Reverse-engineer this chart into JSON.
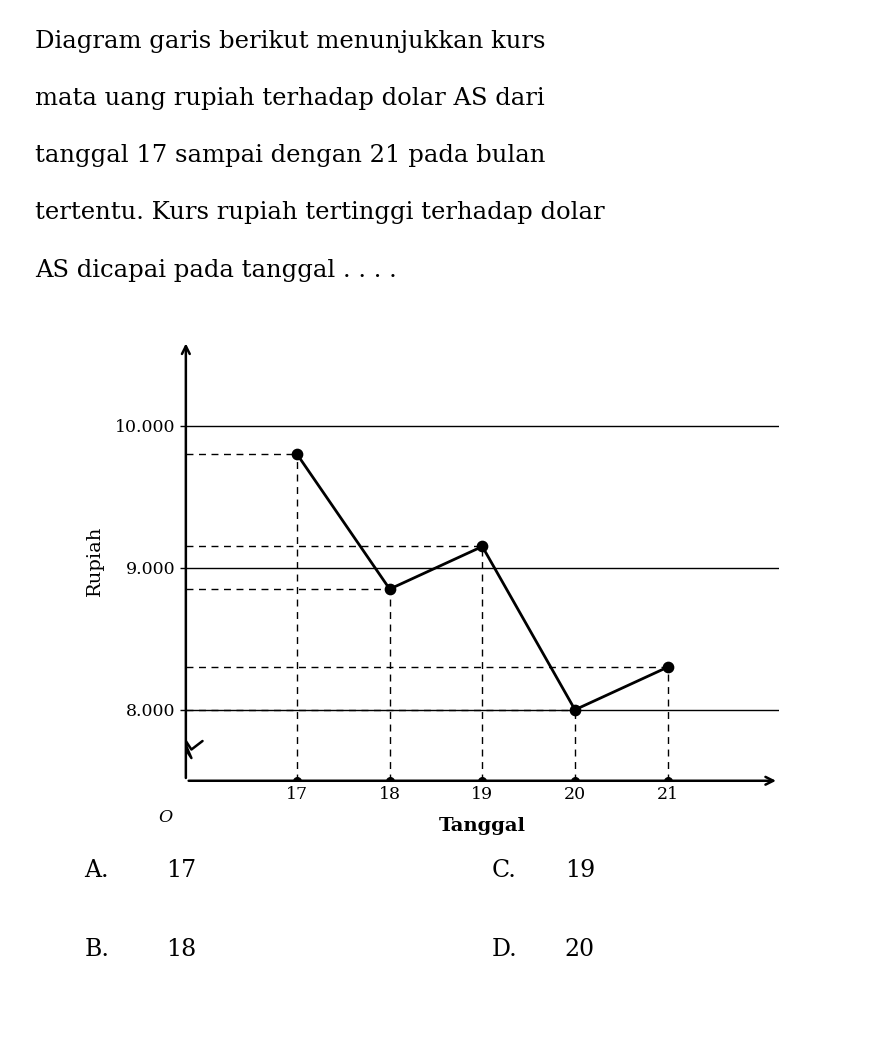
{
  "x_values": [
    17,
    18,
    19,
    20,
    21
  ],
  "y_values": [
    9800,
    8850,
    9150,
    8000,
    8300
  ],
  "yticks": [
    8000,
    9000,
    10000
  ],
  "ytick_labels": [
    "8.000",
    "9.000",
    "10.000"
  ],
  "xtick_labels": [
    "17",
    "18",
    "19",
    "20",
    "21"
  ],
  "xlabel": "Tanggal",
  "ylabel": "Rupiah",
  "ylim_bottom": 7500,
  "ylim_top": 10600,
  "xlim_left": 15.8,
  "xlim_right": 22.2,
  "line_color": "#000000",
  "dot_color": "#000000",
  "background_color": "#ffffff",
  "dashed_color": "#000000",
  "title_lines": [
    "Diagram garis berikut menunjukkan kurs",
    "mata uang rupiah terhadap dolar AS dari",
    "tanggal 17 sampai dengan 21 pada bulan",
    "tertentu. Kurs rupiah tertinggi terhadap dolar",
    "AS dicapai pada tanggal . . . ."
  ],
  "options_left": [
    "A.",
    "B."
  ],
  "options_left_val": [
    "17",
    "18"
  ],
  "options_right": [
    "C.",
    "D."
  ],
  "options_right_val": [
    "19",
    "20"
  ]
}
